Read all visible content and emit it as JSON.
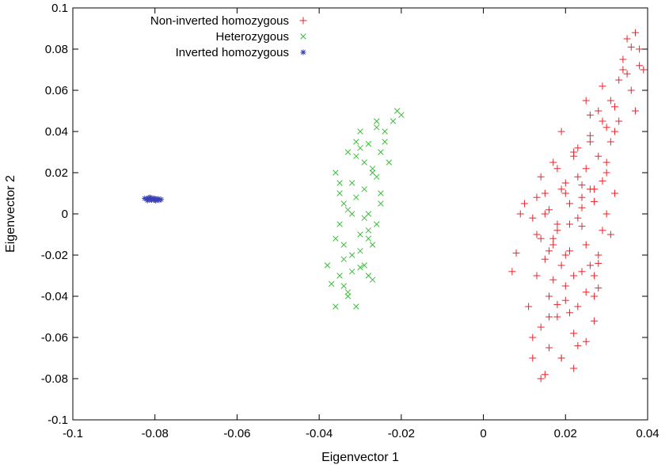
{
  "chart_data": {
    "type": "scatter",
    "xlabel": "Eigenvector 1",
    "ylabel": "Eigenvector 2",
    "xlim": [
      -0.1,
      0.04
    ],
    "ylim": [
      -0.1,
      0.1
    ],
    "xticks": [
      "-0.1",
      "-0.08",
      "-0.06",
      "-0.04",
      "-0.02",
      "0",
      "0.02",
      "0.04"
    ],
    "yticks": [
      "-0.1",
      "-0.08",
      "-0.06",
      "-0.04",
      "-0.02",
      "0",
      "0.02",
      "0.04",
      "0.06",
      "0.08",
      "0.1"
    ],
    "grid": false,
    "legend_position": "top-left",
    "series": [
      {
        "name": "Non-inverted homozygous",
        "marker": "plus",
        "color": "#e8232a",
        "x": [
          0.008,
          0.01,
          0.012,
          0.013,
          0.014,
          0.015,
          0.016,
          0.017,
          0.018,
          0.019,
          0.02,
          0.021,
          0.022,
          0.023,
          0.024,
          0.025,
          0.026,
          0.027,
          0.028,
          0.029,
          0.03,
          0.031,
          0.032,
          0.033,
          0.034,
          0.035,
          0.036,
          0.037,
          0.038,
          0.039,
          0.012,
          0.014,
          0.015,
          0.016,
          0.017,
          0.018,
          0.019,
          0.02,
          0.021,
          0.022,
          0.023,
          0.024,
          0.025,
          0.026,
          0.027,
          0.028,
          0.029,
          0.03,
          0.031,
          0.032,
          0.013,
          0.015,
          0.017,
          0.019,
          0.021,
          0.023,
          0.025,
          0.027,
          0.029,
          0.031,
          0.011,
          0.014,
          0.016,
          0.018,
          0.02,
          0.022,
          0.024,
          0.026,
          0.028,
          0.03,
          0.019,
          0.021,
          0.023,
          0.025,
          0.027,
          0.012,
          0.016,
          0.02,
          0.024,
          0.028,
          0.007,
          0.009,
          0.013,
          0.015,
          0.017,
          0.019,
          0.021,
          0.023,
          0.025,
          0.027,
          0.029,
          0.033,
          0.035,
          0.037,
          0.038,
          0.036,
          0.034,
          0.032,
          0.03,
          0.026,
          0.022,
          0.018,
          0.014,
          0.02,
          0.024,
          0.016,
          0.018,
          0.022,
          0.026,
          0.028
        ],
        "y": [
          -0.019,
          0.005,
          -0.07,
          -0.03,
          -0.055,
          0.01,
          -0.04,
          -0.012,
          0.022,
          -0.025,
          0.015,
          -0.005,
          0.03,
          -0.045,
          0.008,
          -0.015,
          0.035,
          0.012,
          -0.02,
          0.045,
          0.02,
          0.055,
          0.04,
          0.065,
          0.075,
          0.085,
          0.06,
          0.05,
          0.08,
          0.07,
          -0.06,
          -0.08,
          0.0,
          -0.065,
          0.025,
          -0.05,
          0.04,
          -0.035,
          0.005,
          -0.075,
          0.018,
          -0.028,
          -0.062,
          0.048,
          -0.04,
          0.028,
          -0.008,
          0.0,
          0.035,
          0.01,
          -0.01,
          -0.022,
          -0.032,
          0.012,
          -0.018,
          -0.002,
          0.022,
          -0.03,
          0.016,
          -0.01,
          -0.045,
          0.018,
          -0.05,
          -0.005,
          0.01,
          -0.058,
          0.003,
          -0.025,
          0.05,
          0.025,
          -0.07,
          -0.048,
          0.032,
          -0.038,
          0.006,
          -0.002,
          0.002,
          -0.02,
          0.014,
          -0.024,
          -0.028,
          0.0,
          0.008,
          -0.078,
          -0.015,
          -0.07,
          0.005,
          -0.064,
          0.055,
          -0.052,
          0.062,
          0.045,
          0.068,
          0.088,
          0.072,
          0.081,
          0.07,
          0.052,
          0.042,
          0.038,
          0.028,
          -0.008,
          -0.012,
          -0.042,
          -0.006,
          -0.018,
          -0.044,
          -0.03,
          0.012,
          -0.036
        ]
      },
      {
        "name": "Heterozygous",
        "marker": "x",
        "color": "#3dbe3c",
        "x": [
          -0.038,
          -0.037,
          -0.036,
          -0.036,
          -0.035,
          -0.035,
          -0.034,
          -0.034,
          -0.033,
          -0.033,
          -0.032,
          -0.032,
          -0.031,
          -0.031,
          -0.03,
          -0.03,
          -0.029,
          -0.029,
          -0.028,
          -0.028,
          -0.027,
          -0.027,
          -0.026,
          -0.026,
          -0.025,
          -0.025,
          -0.024,
          -0.023,
          -0.022,
          -0.021,
          -0.02,
          -0.036,
          -0.035,
          -0.034,
          -0.033,
          -0.032,
          -0.031,
          -0.03,
          -0.029,
          -0.028,
          -0.027,
          -0.026,
          -0.025,
          -0.024,
          -0.033,
          -0.031,
          -0.029,
          -0.027,
          -0.035,
          -0.03,
          -0.028,
          -0.026,
          -0.032,
          -0.034,
          -0.03,
          -0.028
        ],
        "y": [
          -0.025,
          -0.034,
          -0.045,
          0.02,
          -0.03,
          0.01,
          -0.015,
          0.005,
          -0.04,
          0.03,
          -0.02,
          0.015,
          -0.045,
          0.035,
          -0.01,
          0.04,
          -0.025,
          0.025,
          -0.03,
          0.0,
          0.02,
          -0.015,
          0.045,
          -0.005,
          0.03,
          0.01,
          0.04,
          0.025,
          0.045,
          0.05,
          0.048,
          -0.012,
          -0.005,
          -0.022,
          0.002,
          -0.028,
          0.008,
          -0.018,
          0.012,
          -0.008,
          -0.032,
          0.018,
          0.005,
          0.035,
          -0.038,
          0.028,
          -0.002,
          0.022,
          0.015,
          -0.026,
          0.034,
          0.042,
          0.0,
          -0.035,
          0.032,
          -0.012
        ]
      },
      {
        "name": "Inverted homozygous",
        "marker": "star",
        "color": "#3a3fb5",
        "x": [
          -0.0825,
          -0.082,
          -0.0815,
          -0.081,
          -0.0805,
          -0.08,
          -0.0795,
          -0.079,
          -0.0785,
          -0.0818,
          -0.0808,
          -0.0798,
          -0.0812,
          -0.0802,
          -0.0792
        ],
        "y": [
          0.0075,
          0.0072,
          0.0078,
          0.007,
          0.0074,
          0.0068,
          0.0071,
          0.0066,
          0.007,
          0.0065,
          0.0067,
          0.0064,
          0.008,
          0.0076,
          0.0073
        ]
      }
    ]
  }
}
